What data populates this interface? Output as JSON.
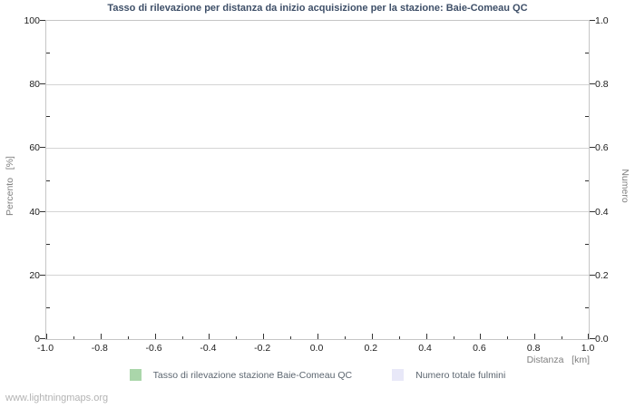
{
  "page": {
    "watermark": "www.lightningmaps.org"
  },
  "chart_data": {
    "type": "line",
    "title": "Tasso di rilevazione per distanza da inizio acquisizione per la stazione: Baie-Comeau QC",
    "xlabel": "Distanza   [km]",
    "ylabel_left": "Percento   [%]",
    "ylabel_right": "Numero",
    "xlim": [
      -1.0,
      1.0
    ],
    "ylim_left": [
      0,
      100
    ],
    "ylim_right": [
      0.0,
      1.0
    ],
    "x_tick_labels": [
      "-1.0",
      "-0.8",
      "-0.6",
      "-0.4",
      "-0.2",
      "0.0",
      "0.2",
      "0.4",
      "0.6",
      "0.8",
      "1.0"
    ],
    "y_left_tick_labels": [
      "0",
      "20",
      "40",
      "60",
      "80",
      "100"
    ],
    "y_right_tick_labels": [
      "0.0",
      "0.2",
      "0.4",
      "0.6",
      "0.8",
      "1.0"
    ],
    "minor_ticks_between_majors": 1,
    "grid": "horizontal-major-only",
    "legend_position": "bottom-center",
    "series": [
      {
        "name": "Tasso di rilevazione stazione Baie-Comeau QC",
        "color": "#aad6aa",
        "points": []
      },
      {
        "name": "Numero totale fulmini",
        "color": "#e8e8f8",
        "points": []
      }
    ]
  },
  "colors": {
    "title": "#3e4f68",
    "tick_label": "#1c1c1c",
    "axis_title": "#7f7f7f",
    "legend_text": "#5c6670",
    "frame": "#c6c6c6",
    "grid": "#d4d4d4",
    "tick": "#333333",
    "watermark": "#b3b3b3",
    "background": "#ffffff"
  }
}
